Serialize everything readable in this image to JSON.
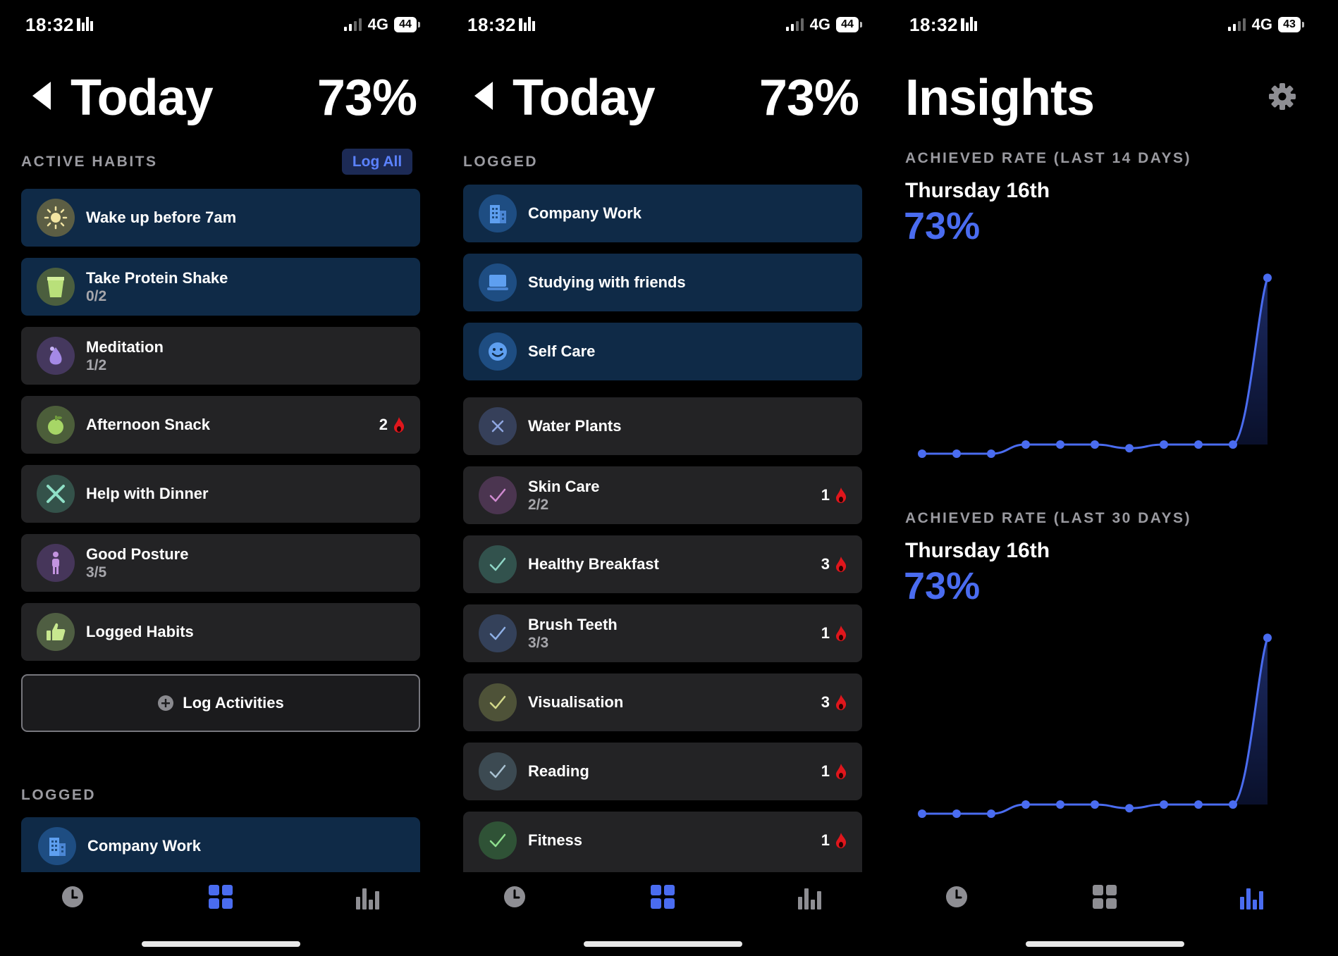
{
  "status_bar": {
    "screen1": {
      "time": "18:32",
      "network": "4G",
      "battery": "44"
    },
    "screen2": {
      "time": "18:32",
      "network": "4G",
      "battery": "44"
    },
    "screen3": {
      "time": "18:32",
      "network": "4G",
      "battery": "43"
    }
  },
  "today": {
    "title": "Today",
    "percent": "73%",
    "active_label": "ACTIVE HABITS",
    "log_all": "Log All",
    "logged_label": "LOGGED",
    "log_activities": "Log Activities",
    "active_habits": [
      {
        "title": "Wake up before 7am",
        "sub": "",
        "streak": "",
        "icon": "sun-icon"
      },
      {
        "title": "Take Protein Shake",
        "sub": "0/2",
        "streak": "",
        "icon": "cup-icon"
      },
      {
        "title": "Meditation",
        "sub": "1/2",
        "streak": "",
        "icon": "lotus-icon"
      },
      {
        "title": "Afternoon Snack",
        "sub": "",
        "streak": "2",
        "icon": "apple-icon"
      },
      {
        "title": "Help with Dinner",
        "sub": "",
        "streak": "",
        "icon": "utensils-icon"
      },
      {
        "title": "Good Posture",
        "sub": "3/5",
        "streak": "",
        "icon": "person-icon"
      },
      {
        "title": "Logged Habits",
        "sub": "",
        "streak": "",
        "icon": "thumbs-up-icon"
      }
    ],
    "logged_preview": {
      "title": "Company Work",
      "icon": "building-icon"
    }
  },
  "logged": {
    "title": "Today",
    "percent": "73%",
    "label": "LOGGED",
    "activities": [
      {
        "title": "Company Work",
        "icon": "building-icon"
      },
      {
        "title": "Studying with friends",
        "icon": "laptop-icon"
      },
      {
        "title": "Self Care",
        "icon": "smiley-icon"
      }
    ],
    "habits": [
      {
        "title": "Water Plants",
        "sub": "",
        "streak": "",
        "icon": "x-icon"
      },
      {
        "title": "Skin Care",
        "sub": "2/2",
        "streak": "1",
        "icon": "check-icon"
      },
      {
        "title": "Healthy Breakfast",
        "sub": "",
        "streak": "3",
        "icon": "check-icon"
      },
      {
        "title": "Brush Teeth",
        "sub": "3/3",
        "streak": "1",
        "icon": "check-icon"
      },
      {
        "title": "Visualisation",
        "sub": "",
        "streak": "3",
        "icon": "check-icon"
      },
      {
        "title": "Reading",
        "sub": "",
        "streak": "1",
        "icon": "check-icon"
      },
      {
        "title": "Fitness",
        "sub": "",
        "streak": "1",
        "icon": "check-icon"
      }
    ]
  },
  "insights": {
    "title": "Insights",
    "sections": [
      {
        "label": "ACHIEVED RATE (LAST 14 DAYS)",
        "date": "Thursday 16th",
        "rate": "73%"
      },
      {
        "label": "ACHIEVED RATE (LAST 30 DAYS)",
        "date": "Thursday 16th",
        "rate": "73%"
      }
    ]
  },
  "colors": {
    "accent": "#4a6cf0",
    "card": "#232325",
    "card_blue": "#0f2a47",
    "streak_flame": "#e0161c"
  },
  "chart_data": [
    {
      "type": "line",
      "values": [
        0,
        0,
        0,
        5,
        5,
        5,
        3,
        5,
        5,
        5,
        96
      ],
      "ylim": [
        0,
        100
      ]
    },
    {
      "type": "line",
      "values": [
        0,
        0,
        0,
        5,
        5,
        5,
        3,
        5,
        5,
        5,
        96
      ],
      "ylim": [
        0,
        100
      ]
    }
  ]
}
